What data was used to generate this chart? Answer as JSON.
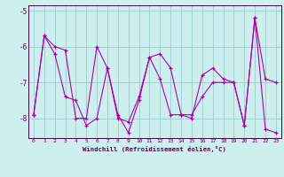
{
  "xlabel": "Windchill (Refroidissement éolien,°C)",
  "ylabel": "",
  "bg_color": "#cdf0ee",
  "line_color": "#aa00aa",
  "grid_color": "#99cccc",
  "axis_color": "#440044",
  "text_color": "#550055",
  "xlim_min": -0.5,
  "xlim_max": 23.5,
  "ylim_min": -8.55,
  "ylim_max": -4.85,
  "yticks": [
    -8,
    -7,
    -6,
    -5
  ],
  "xticks": [
    0,
    1,
    2,
    3,
    4,
    5,
    6,
    7,
    8,
    9,
    10,
    11,
    12,
    13,
    14,
    15,
    16,
    17,
    18,
    19,
    20,
    21,
    22,
    23
  ],
  "series": [
    [
      -7.9,
      -5.7,
      -6.0,
      -6.1,
      -8.0,
      -8.0,
      -6.0,
      -6.6,
      -8.0,
      -8.1,
      -7.4,
      -6.3,
      -6.2,
      -6.6,
      -7.9,
      -8.0,
      -6.8,
      -6.6,
      -6.9,
      -7.0,
      -8.2,
      -5.2,
      -6.9,
      -7.0
    ],
    [
      -7.9,
      -5.7,
      -6.2,
      -7.4,
      -7.5,
      -8.2,
      -8.0,
      -6.6,
      -7.9,
      -8.4,
      -7.5,
      -6.3,
      -6.9,
      -7.9,
      -7.9,
      -7.9,
      -7.4,
      -7.0,
      -7.0,
      -7.0,
      -8.2,
      -5.2,
      -8.3,
      -8.4
    ]
  ],
  "figwidth": 3.2,
  "figheight": 2.0,
  "dpi": 100
}
